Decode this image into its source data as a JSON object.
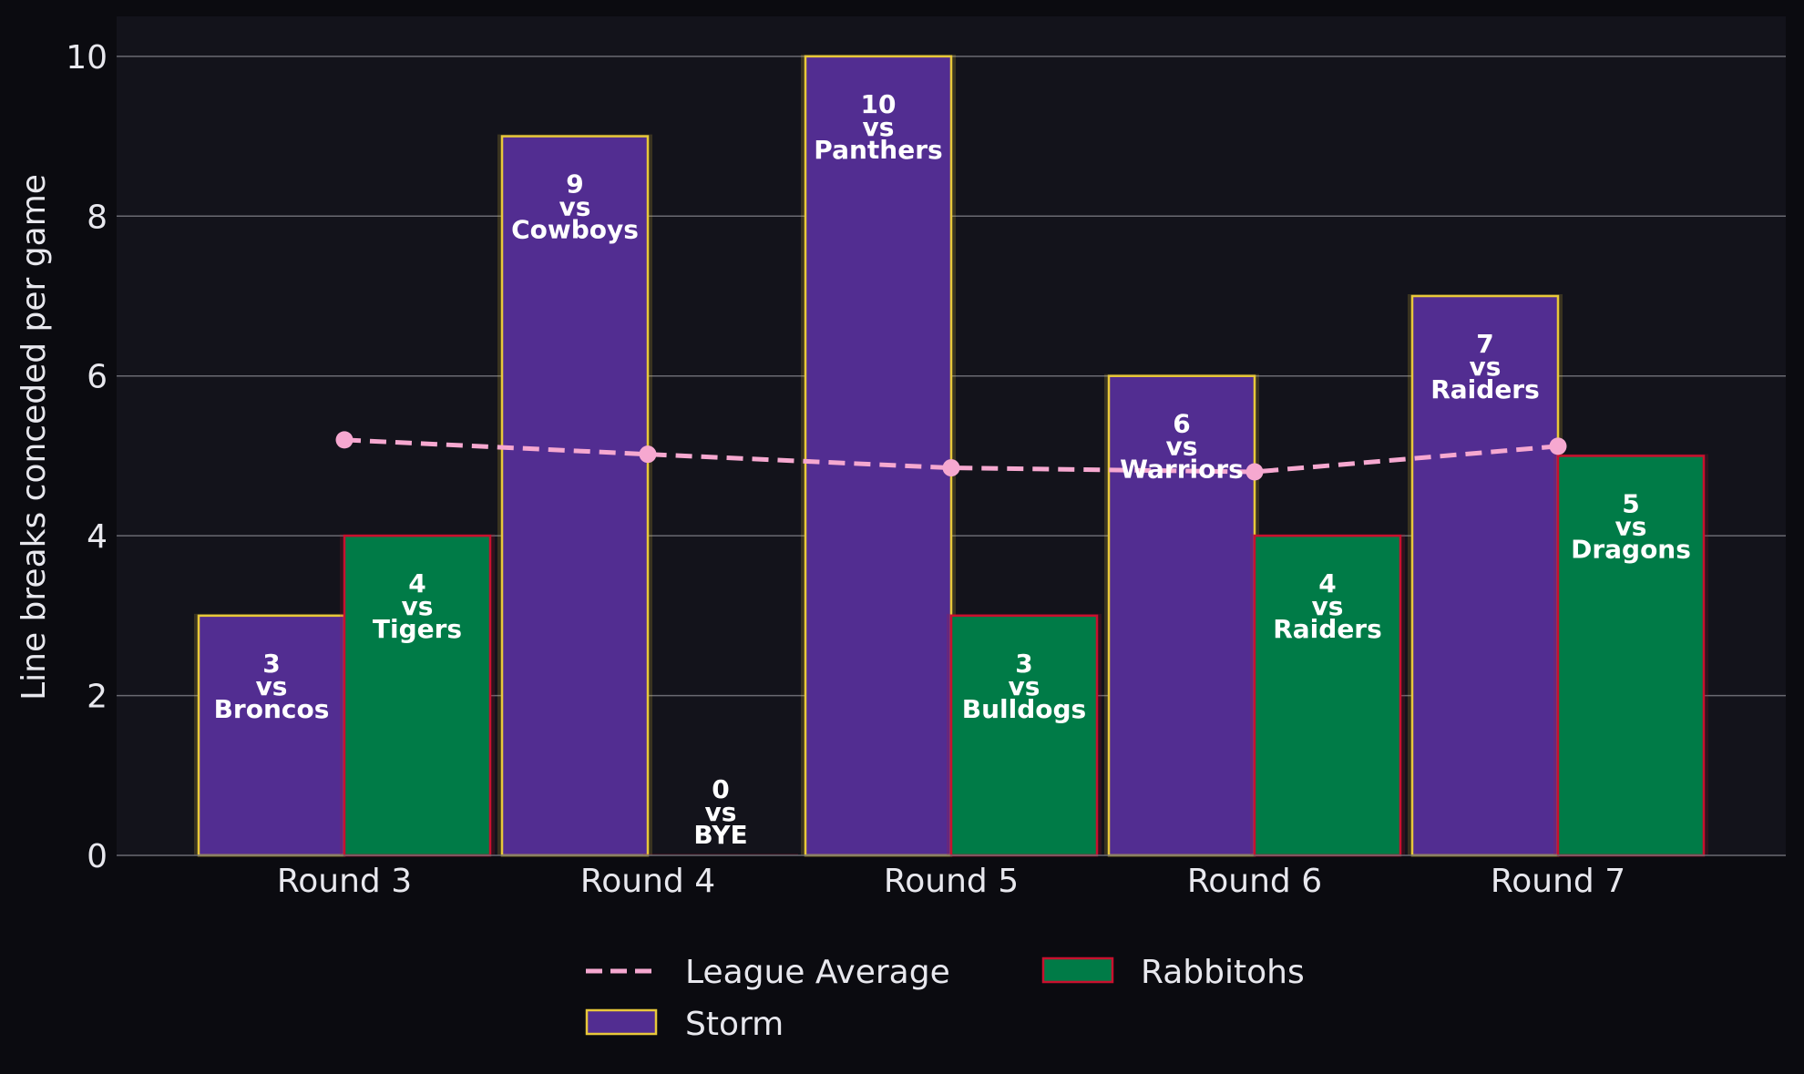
{
  "chart_data": {
    "type": "bar",
    "categories": [
      "Round 3",
      "Round 4",
      "Round 5",
      "Round 6",
      "Round 7"
    ],
    "series": [
      {
        "name": "Storm",
        "color": "#522d91",
        "edge_color": "#e8c83a",
        "values": [
          3,
          9,
          10,
          6,
          7
        ],
        "labels": [
          [
            "3",
            "vs",
            "Broncos"
          ],
          [
            "9",
            "vs",
            "Cowboys"
          ],
          [
            "10",
            "vs",
            "Panthers"
          ],
          [
            "6",
            "vs",
            "Warriors"
          ],
          [
            "7",
            "vs",
            "Raiders"
          ]
        ]
      },
      {
        "name": "Rabbitohs",
        "color": "#007b47",
        "edge_color": "#c8102e",
        "values": [
          4,
          0,
          3,
          4,
          5
        ],
        "labels": [
          [
            "4",
            "vs",
            "Tigers"
          ],
          [
            "0",
            "vs",
            "BYE"
          ],
          [
            "3",
            "vs",
            "Bulldogs"
          ],
          [
            "4",
            "vs",
            "Raiders"
          ],
          [
            "5",
            "vs",
            "Dragons"
          ]
        ]
      }
    ],
    "line_series": {
      "name": "League Average",
      "color": "#f6a8d0",
      "style": "dashed",
      "values": [
        5.2,
        5.02,
        4.85,
        4.8,
        5.12
      ]
    },
    "ylabel": "Line breaks conceded per game",
    "xlabel": "",
    "ylim": [
      0,
      10.5
    ],
    "yticks": [
      0,
      2,
      4,
      6,
      8,
      10
    ],
    "grid": true,
    "legend_position": "bottom-center",
    "legend_order": [
      "League Average",
      "Storm",
      "Rabbitohs"
    ],
    "background": "#13131b",
    "page_background": "#0b0b10"
  }
}
